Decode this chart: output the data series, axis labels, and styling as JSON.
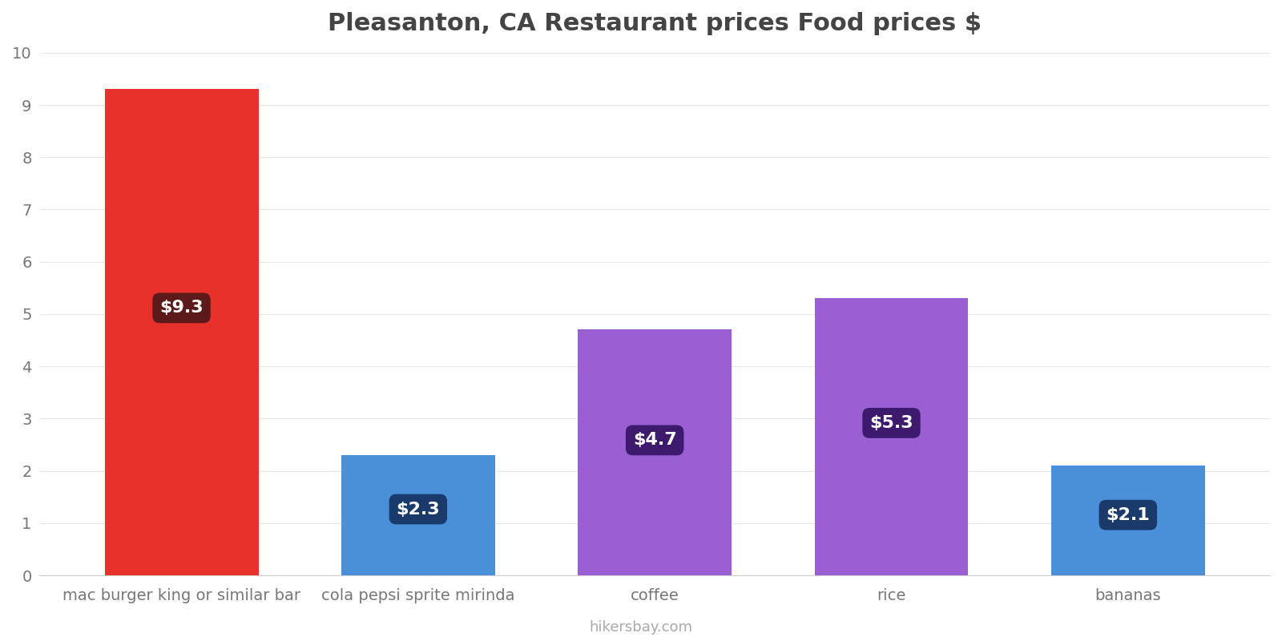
{
  "title": "Pleasanton, CA Restaurant prices Food prices $",
  "categories": [
    "mac burger king or similar bar",
    "cola pepsi sprite mirinda",
    "coffee",
    "rice",
    "bananas"
  ],
  "values": [
    9.3,
    2.3,
    4.7,
    5.3,
    2.1
  ],
  "bar_colors": [
    "#e8312a",
    "#4a90d9",
    "#9b5fd4",
    "#9b5fd4",
    "#4a90d9"
  ],
  "label_bg_colors": [
    "#5c1a1a",
    "#1a3a6b",
    "#3d1a6e",
    "#3d1a6e",
    "#1a3a6b"
  ],
  "labels": [
    "$9.3",
    "$2.3",
    "$4.7",
    "$5.3",
    "$2.1"
  ],
  "ylim": [
    0,
    10
  ],
  "yticks": [
    0,
    1,
    2,
    3,
    4,
    5,
    6,
    7,
    8,
    9,
    10
  ],
  "watermark": "hikersbay.com",
  "title_fontsize": 22,
  "tick_fontsize": 14,
  "label_fontsize": 16,
  "background_color": "#ffffff"
}
